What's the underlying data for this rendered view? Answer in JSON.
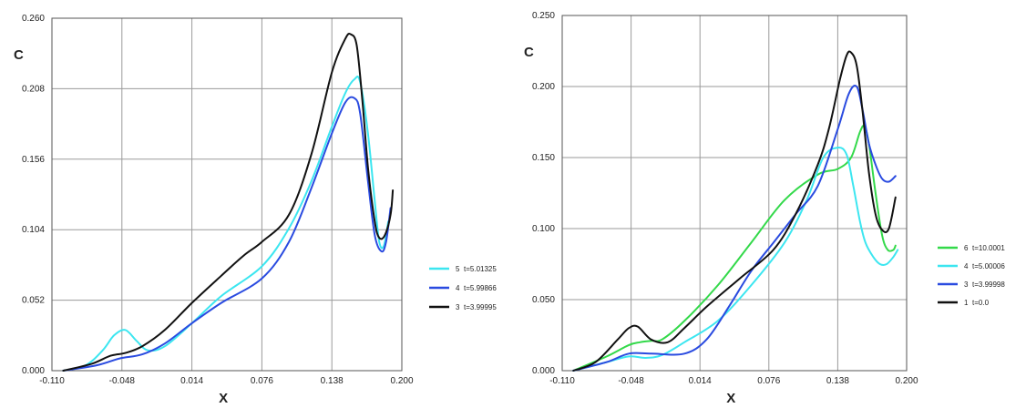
{
  "chart_data": [
    {
      "type": "line",
      "xlabel": "X",
      "ylabel": "C",
      "xlim": [
        -0.11,
        0.2
      ],
      "ylim": [
        0.0,
        0.26
      ],
      "xticks": [
        "-0.110",
        "-0.048",
        "0.014",
        "0.076",
        "0.138",
        "0.200"
      ],
      "yticks": [
        "0.000",
        "0.052",
        "0.104",
        "0.156",
        "0.208",
        "0.260"
      ],
      "grid": true,
      "legend_position": "right",
      "series": [
        {
          "id": "5",
          "name": "t=5.01325",
          "color": "#3ce6f0",
          "x": [
            -0.1,
            -0.08,
            -0.065,
            -0.055,
            -0.045,
            -0.035,
            -0.025,
            -0.01,
            0.014,
            0.04,
            0.076,
            0.1,
            0.12,
            0.138,
            0.15,
            0.158,
            0.163,
            0.17,
            0.176,
            0.18,
            0.184,
            0.188
          ],
          "y": [
            0.0,
            0.004,
            0.015,
            0.026,
            0.03,
            0.022,
            0.015,
            0.018,
            0.035,
            0.055,
            0.077,
            0.105,
            0.14,
            0.18,
            0.205,
            0.215,
            0.213,
            0.175,
            0.125,
            0.095,
            0.092,
            0.11
          ]
        },
        {
          "id": "4",
          "name": "t=5.99866",
          "color": "#2a4be0",
          "x": [
            -0.1,
            -0.07,
            -0.05,
            -0.03,
            -0.01,
            0.014,
            0.04,
            0.076,
            0.1,
            0.12,
            0.138,
            0.15,
            0.158,
            0.163,
            0.17,
            0.176,
            0.182,
            0.186,
            0.19
          ],
          "y": [
            0.0,
            0.004,
            0.009,
            0.012,
            0.02,
            0.035,
            0.05,
            0.068,
            0.095,
            0.135,
            0.175,
            0.198,
            0.201,
            0.19,
            0.14,
            0.1,
            0.088,
            0.095,
            0.12
          ]
        },
        {
          "id": "3",
          "name": "t=3.99995",
          "color": "#111111",
          "x": [
            -0.1,
            -0.075,
            -0.058,
            -0.045,
            -0.03,
            -0.01,
            0.014,
            0.04,
            0.06,
            0.076,
            0.1,
            0.12,
            0.138,
            0.15,
            0.155,
            0.16,
            0.165,
            0.17,
            0.176,
            0.18,
            0.185,
            0.19,
            0.192
          ],
          "y": [
            0.0,
            0.005,
            0.011,
            0.013,
            0.018,
            0.03,
            0.05,
            0.07,
            0.085,
            0.095,
            0.115,
            0.16,
            0.22,
            0.245,
            0.248,
            0.24,
            0.2,
            0.15,
            0.11,
            0.098,
            0.1,
            0.115,
            0.133
          ]
        }
      ]
    },
    {
      "type": "line",
      "xlabel": "X",
      "ylabel": "C",
      "xlim": [
        -0.11,
        0.2
      ],
      "ylim": [
        0.0,
        0.25
      ],
      "xticks": [
        "-0.110",
        "-0.048",
        "0.014",
        "0.076",
        "0.138",
        "0.200"
      ],
      "yticks": [
        "0.000",
        "0.050",
        "0.100",
        "0.150",
        "0.200",
        "0.250"
      ],
      "grid": true,
      "legend_position": "right",
      "series": [
        {
          "id": "6",
          "name": "t=10.0001",
          "color": "#33d94a",
          "x": [
            -0.1,
            -0.07,
            -0.05,
            -0.04,
            -0.03,
            -0.02,
            0.0,
            0.03,
            0.06,
            0.09,
            0.12,
            0.138,
            0.15,
            0.158,
            0.162,
            0.166,
            0.172,
            0.178,
            0.183,
            0.188,
            0.19
          ],
          "y": [
            0.0,
            0.01,
            0.018,
            0.02,
            0.021,
            0.022,
            0.035,
            0.06,
            0.09,
            0.12,
            0.138,
            0.142,
            0.15,
            0.168,
            0.172,
            0.16,
            0.125,
            0.095,
            0.085,
            0.085,
            0.088
          ]
        },
        {
          "id": "4",
          "name": "t=5.00006",
          "color": "#3ce6f0",
          "x": [
            -0.1,
            -0.07,
            -0.05,
            -0.035,
            -0.02,
            0.0,
            0.03,
            0.06,
            0.09,
            0.11,
            0.125,
            0.138,
            0.146,
            0.152,
            0.158,
            0.163,
            0.17,
            0.176,
            0.182,
            0.188,
            0.192
          ],
          "y": [
            0.0,
            0.006,
            0.01,
            0.009,
            0.011,
            0.02,
            0.035,
            0.06,
            0.09,
            0.12,
            0.15,
            0.157,
            0.152,
            0.13,
            0.105,
            0.09,
            0.08,
            0.075,
            0.075,
            0.08,
            0.085
          ]
        },
        {
          "id": "3",
          "name": "t=3.99998",
          "color": "#2a4be0",
          "x": [
            -0.1,
            -0.07,
            -0.05,
            -0.03,
            0.0,
            0.02,
            0.04,
            0.06,
            0.08,
            0.1,
            0.12,
            0.138,
            0.148,
            0.155,
            0.16,
            0.166,
            0.172,
            0.178,
            0.184,
            0.19
          ],
          "y": [
            0.0,
            0.006,
            0.012,
            0.012,
            0.012,
            0.022,
            0.045,
            0.07,
            0.09,
            0.11,
            0.13,
            0.17,
            0.195,
            0.2,
            0.185,
            0.16,
            0.145,
            0.135,
            0.133,
            0.137
          ]
        },
        {
          "id": "1",
          "name": "t=0.0",
          "color": "#111111",
          "x": [
            -0.1,
            -0.08,
            -0.06,
            -0.05,
            -0.042,
            -0.03,
            -0.015,
            0.0,
            0.02,
            0.05,
            0.08,
            0.1,
            0.12,
            0.13,
            0.14,
            0.146,
            0.15,
            0.155,
            0.16,
            0.166,
            0.172,
            0.178,
            0.184,
            0.19
          ],
          "y": [
            0.0,
            0.006,
            0.022,
            0.03,
            0.031,
            0.022,
            0.02,
            0.03,
            0.045,
            0.065,
            0.085,
            0.11,
            0.145,
            0.17,
            0.205,
            0.222,
            0.224,
            0.215,
            0.185,
            0.14,
            0.11,
            0.099,
            0.1,
            0.122
          ]
        }
      ]
    }
  ]
}
